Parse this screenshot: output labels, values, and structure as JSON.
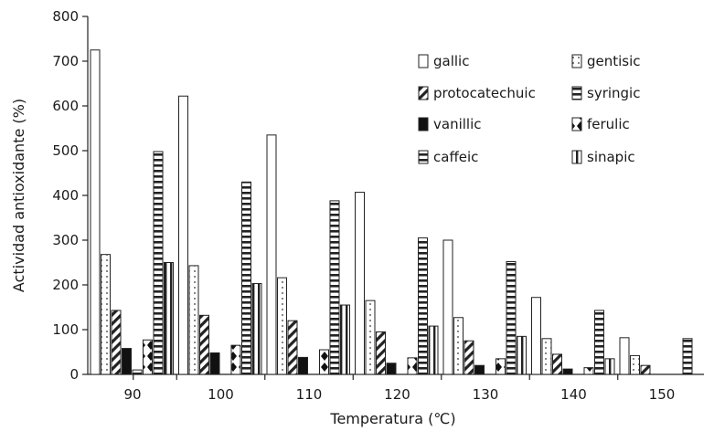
{
  "chart_data": {
    "type": "bar",
    "title": "",
    "xlabel": "Temperatura (℃)",
    "ylabel": "Actividad antioxidante (%)",
    "ylim": [
      0,
      800
    ],
    "yticks": [
      "0",
      "100",
      "200",
      "300",
      "400",
      "500",
      "600",
      "700",
      "800"
    ],
    "categories": [
      "90",
      "100",
      "110",
      "120",
      "130",
      "140",
      "150"
    ],
    "grid": false,
    "legend_position": "top-right",
    "series": [
      {
        "name": "gallic",
        "pattern": "empty",
        "values": [
          725,
          622,
          535,
          407,
          300,
          172,
          82
        ]
      },
      {
        "name": "gentisic",
        "pattern": "dots",
        "values": [
          268,
          243,
          216,
          165,
          127,
          80,
          42
        ]
      },
      {
        "name": "protocatechuic",
        "pattern": "diagonal",
        "values": [
          143,
          132,
          120,
          95,
          75,
          45,
          20
        ]
      },
      {
        "name": "vanillic",
        "pattern": "solid",
        "values": [
          58,
          48,
          38,
          25,
          20,
          12,
          0
        ]
      },
      {
        "name": "caffeic",
        "pattern": "horizontal",
        "values": [
          10,
          0,
          0,
          0,
          0,
          0,
          0
        ]
      },
      {
        "name": "ferulic",
        "pattern": "diamond",
        "values": [
          77,
          65,
          55,
          37,
          35,
          15,
          0
        ]
      },
      {
        "name": "syringic",
        "pattern": "horizontal",
        "values": [
          498,
          430,
          388,
          305,
          252,
          143,
          80
        ]
      },
      {
        "name": "sinapic",
        "pattern": "vertical",
        "values": [
          250,
          203,
          155,
          108,
          85,
          35,
          0
        ]
      }
    ],
    "legend": [
      {
        "name": "gallic",
        "pattern": "empty"
      },
      {
        "name": "gentisic",
        "pattern": "dots"
      },
      {
        "name": "protocatechuic",
        "pattern": "diagonal"
      },
      {
        "name": "syringic",
        "pattern": "horizontal"
      },
      {
        "name": "vanillic",
        "pattern": "solid"
      },
      {
        "name": "ferulic",
        "pattern": "diamond"
      },
      {
        "name": "caffeic",
        "pattern": "horizontal"
      },
      {
        "name": "sinapic",
        "pattern": "vertical"
      }
    ]
  }
}
